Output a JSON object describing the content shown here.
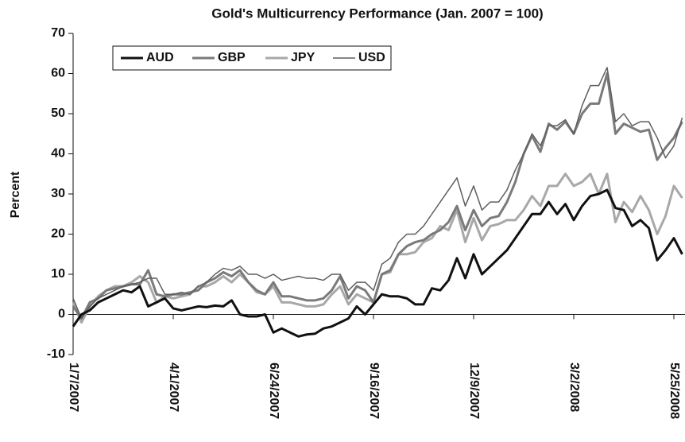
{
  "chart_data": {
    "type": "line",
    "title": "Gold's Multicurrency Performance (Jan. 2007 = 100)",
    "y_label": "Percent",
    "categories": [
      "1/7/2007",
      null,
      null,
      null,
      null,
      null,
      null,
      null,
      null,
      null,
      null,
      null,
      "4/1/2007",
      null,
      null,
      null,
      null,
      null,
      null,
      null,
      null,
      null,
      null,
      null,
      "6/24/2007",
      null,
      null,
      null,
      null,
      null,
      null,
      null,
      null,
      null,
      null,
      null,
      "9/16/2007",
      null,
      null,
      null,
      null,
      null,
      null,
      null,
      null,
      null,
      null,
      null,
      "12/9/2007",
      null,
      null,
      null,
      null,
      null,
      null,
      null,
      null,
      null,
      null,
      null,
      "3/2/2008",
      null,
      null,
      null,
      null,
      null,
      null,
      null,
      null,
      null,
      null,
      null,
      "5/25/2008",
      null
    ],
    "series": [
      {
        "name": "AUD",
        "color": "#111111",
        "width": 3,
        "values": [
          -3,
          0,
          1,
          3,
          4,
          5,
          6,
          5.5,
          7,
          2,
          3,
          4,
          1.5,
          1,
          1.5,
          2,
          1.8,
          2.2,
          2,
          3.5,
          0,
          -0.5,
          -0.5,
          0,
          -4.5,
          -3.5,
          -4.5,
          -5.5,
          -5,
          -4.8,
          -3.5,
          -3,
          -2,
          -1,
          2,
          0,
          2.5,
          5,
          4.5,
          4.5,
          4,
          2.5,
          2.5,
          6.5,
          6,
          8.5,
          14,
          9,
          15,
          10,
          12,
          14,
          16,
          19,
          22,
          25,
          25,
          28,
          25,
          27.5,
          23.5,
          27,
          29.5,
          30,
          31,
          26.5,
          26,
          22,
          23.5,
          21.5,
          13.5,
          16,
          19,
          15
        ]
      },
      {
        "name": "GBP",
        "color": "#7a7a7a",
        "width": 3,
        "values": [
          2,
          -1,
          3,
          4,
          6,
          6.5,
          7,
          7.5,
          7.5,
          11,
          5,
          4.5,
          5,
          5,
          5.5,
          6,
          8,
          9,
          10.5,
          9.5,
          11,
          8,
          6,
          5,
          8,
          4.5,
          4.5,
          4,
          3.5,
          3.5,
          4,
          6,
          9.5,
          4,
          7,
          6,
          3,
          10,
          11,
          15,
          17,
          18,
          18.5,
          20,
          21,
          23,
          27,
          21,
          26,
          22,
          24,
          24.5,
          28,
          33,
          40,
          44.5,
          40.5,
          47.5,
          46,
          48,
          45,
          50,
          52.5,
          52.5,
          60,
          45,
          47.5,
          46.5,
          45.5,
          46,
          38.5,
          41.5,
          44,
          48
        ]
      },
      {
        "name": "JPY",
        "color": "#a8a8a8",
        "width": 3,
        "values": [
          3,
          -2,
          2,
          4.5,
          6,
          7,
          7,
          8,
          9.5,
          8,
          3,
          4.5,
          4,
          4.5,
          5,
          7,
          7,
          8,
          9.5,
          8,
          10,
          8,
          5.5,
          5,
          7,
          3,
          3,
          2.5,
          2,
          2,
          2.5,
          5,
          7,
          2.5,
          5,
          4,
          3,
          10,
          10.5,
          15,
          15,
          15.5,
          18,
          19,
          22,
          21,
          26,
          18,
          24,
          18.5,
          22,
          22.5,
          23.5,
          23.5,
          26,
          29.5,
          27,
          32,
          32,
          35,
          32,
          33,
          35,
          30,
          35,
          23,
          28,
          25.5,
          29.5,
          26,
          20,
          24.5,
          32,
          29
        ]
      },
      {
        "name": "USD",
        "color": "#5e5e5e",
        "width": 1.5,
        "values": [
          4,
          -1,
          2,
          4,
          5,
          6,
          7,
          7.5,
          8,
          9,
          9,
          5,
          5,
          5.5,
          5,
          7,
          8,
          10,
          11.5,
          11,
          12,
          10,
          10,
          9,
          10,
          8.5,
          9,
          9.5,
          9,
          9,
          8.5,
          10,
          10,
          6,
          8,
          8,
          6,
          12.5,
          14,
          18,
          20,
          20,
          22,
          25,
          28,
          31,
          34,
          27,
          32,
          26,
          28,
          28,
          31,
          36,
          40,
          45,
          42,
          47,
          47,
          48.5,
          45,
          52,
          57,
          57,
          61.5,
          48,
          50,
          47,
          48,
          48,
          44,
          39,
          42,
          49
        ]
      }
    ],
    "ylim": [
      -10,
      70
    ],
    "yticks": [
      -10,
      0,
      10,
      20,
      30,
      40,
      50,
      60,
      70
    ],
    "grid": false,
    "legend": "top-left"
  }
}
